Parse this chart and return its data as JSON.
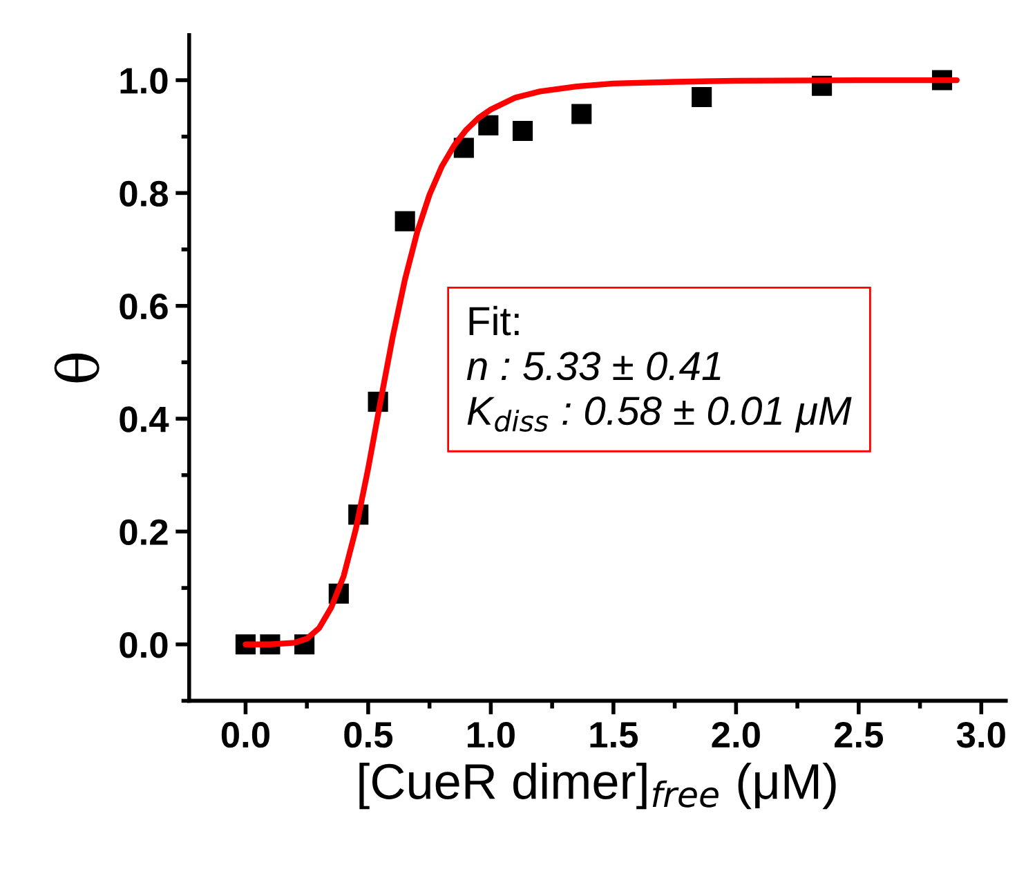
{
  "chart_data": {
    "type": "scatter",
    "xlabel": "[CueR dimer]$_{free}$ (μM)",
    "ylabel": "θ",
    "xlim": [
      -0.23,
      3.1
    ],
    "ylim": [
      -0.1,
      1.08
    ],
    "xticks": [
      {
        "value": 0,
        "label": "0.0"
      },
      0.5,
      {
        "value": 1,
        "label": "1.0"
      },
      1.5,
      {
        "value": 2,
        "label": "2.0"
      },
      2.5,
      {
        "value": 3,
        "label": "3.0"
      }
    ],
    "yticks": [
      {
        "value": 0,
        "label": "0.0"
      },
      0.2,
      0.4,
      0.6,
      0.8,
      {
        "value": 1,
        "label": "1.0"
      }
    ],
    "grid": false,
    "legend": false,
    "marker": "square",
    "series": [
      {
        "type": "scatter",
        "color": "#000000",
        "x": [
          0,
          0.1,
          0.24,
          0.38,
          0.46,
          0.54,
          0.65,
          0.89,
          0.99,
          1.13,
          1.37,
          1.86,
          2.35,
          2.84
        ],
        "values": [
          0,
          0,
          0,
          0.09,
          0.23,
          0.43,
          0.75,
          0.88,
          0.92,
          0.91,
          0.94,
          0.97,
          0.99,
          1.0
        ]
      },
      {
        "type": "line",
        "color": "#ff0000",
        "marker": "none",
        "line_style": "solid",
        "x": [
          0,
          0.1,
          0.2,
          0.25,
          0.3,
          0.35,
          0.4,
          0.45,
          0.5,
          0.55,
          0.6,
          0.65,
          0.7,
          0.75,
          0.8,
          0.85,
          0.9,
          0.95,
          1.0,
          1.1,
          1.2,
          1.35,
          1.5,
          1.75,
          2.0,
          2.5,
          2.9
        ],
        "values": [
          0,
          0,
          0.003,
          0.01,
          0.029,
          0.066,
          0.121,
          0.205,
          0.312,
          0.43,
          0.545,
          0.647,
          0.731,
          0.797,
          0.847,
          0.884,
          0.912,
          0.933,
          0.948,
          0.969,
          0.98,
          0.989,
          0.994,
          0.997,
          0.999,
          1.0,
          1.0
        ]
      }
    ],
    "annotations": [
      "Fit:",
      "n : 5.33 ± 0.41",
      "K$_{diss}$ : 0.58 ± 0.01 μM"
    ]
  }
}
